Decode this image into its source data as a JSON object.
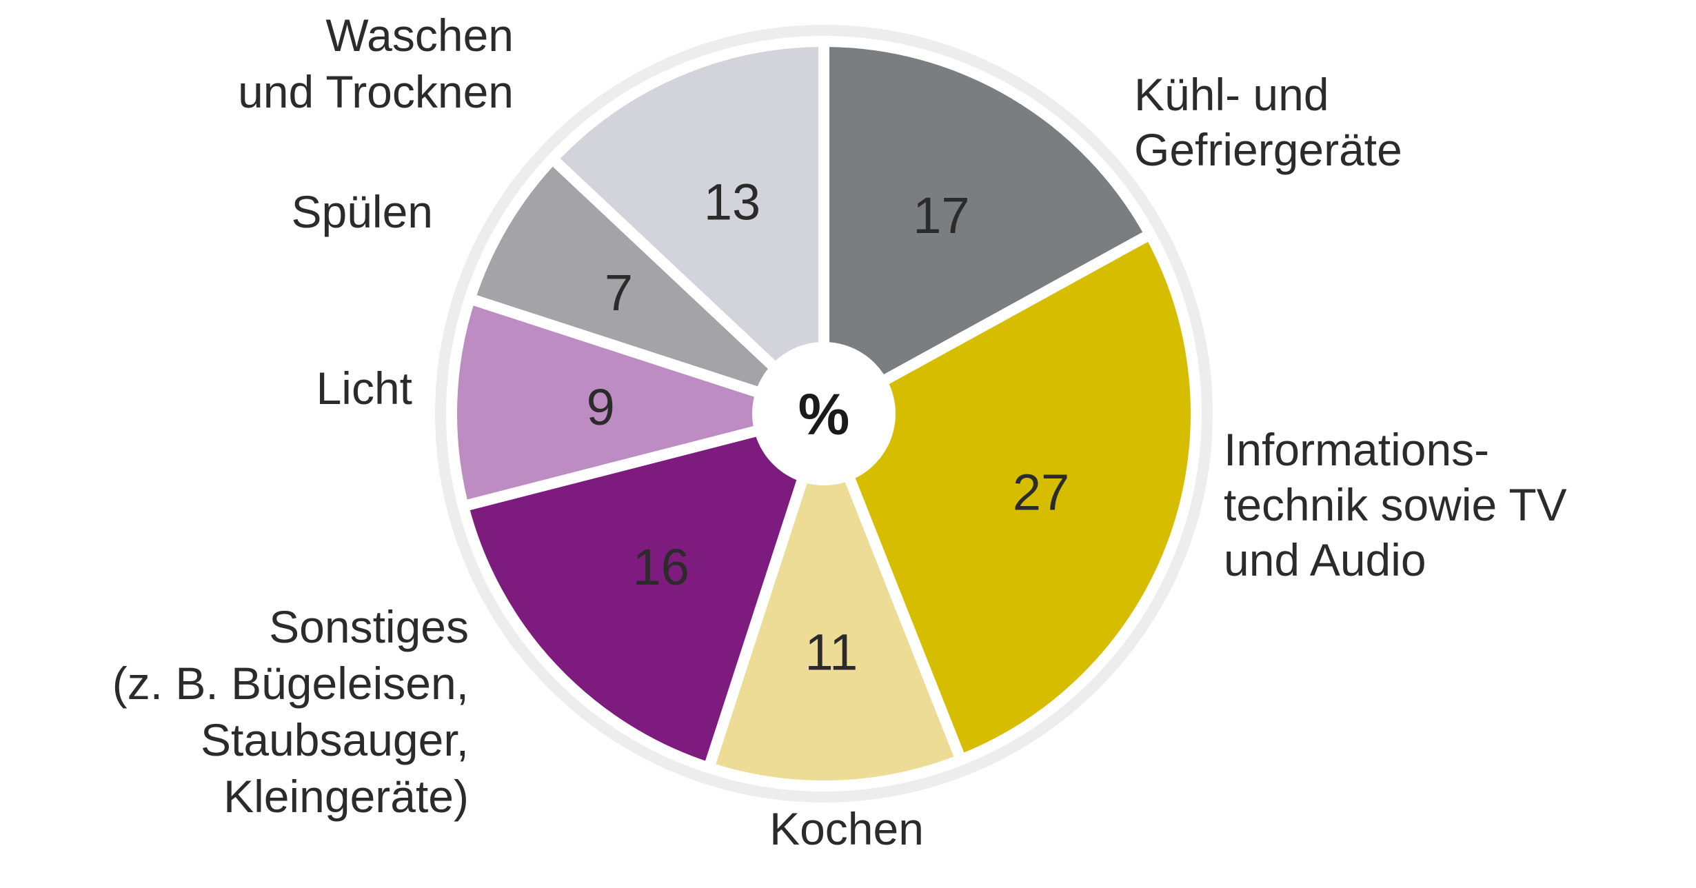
{
  "chart_data": {
    "type": "pie",
    "unit_label": "%",
    "start_angle_deg": 0,
    "direction": "clockwise",
    "slices": [
      {
        "name": "Kühl- und Gefriergeräte",
        "label_lines": [
          "Kühl- und",
          "Gefriergeräte"
        ],
        "value": 17,
        "color": "#7a7e81"
      },
      {
        "name": "Informationstechnik sowie TV und Audio",
        "label_lines": [
          "Informations-",
          "technik sowie TV",
          "und Audio"
        ],
        "value": 27,
        "color": "#d6bd00"
      },
      {
        "name": "Kochen",
        "label_lines": [
          "Kochen"
        ],
        "value": 11,
        "color": "#ecdc96"
      },
      {
        "name": "Sonstiges (z. B. Bügeleisen, Staubsauger, Kleingeräte)",
        "label_lines": [
          "Sonstiges",
          "(z. B. Bügeleisen,",
          "Staubsauger,",
          "Kleingeräte)"
        ],
        "value": 16,
        "color": "#7d1b7e"
      },
      {
        "name": "Licht",
        "label_lines": [
          "Licht"
        ],
        "value": 9,
        "color": "#bd8cc2"
      },
      {
        "name": "Spülen",
        "label_lines": [
          "Spülen"
        ],
        "value": 7,
        "color": "#a4a3a8"
      },
      {
        "name": "Waschen und Trocknen",
        "label_lines": [
          "Waschen",
          "und Trocknen"
        ],
        "value": 13,
        "color": "#d3d3db"
      }
    ]
  }
}
